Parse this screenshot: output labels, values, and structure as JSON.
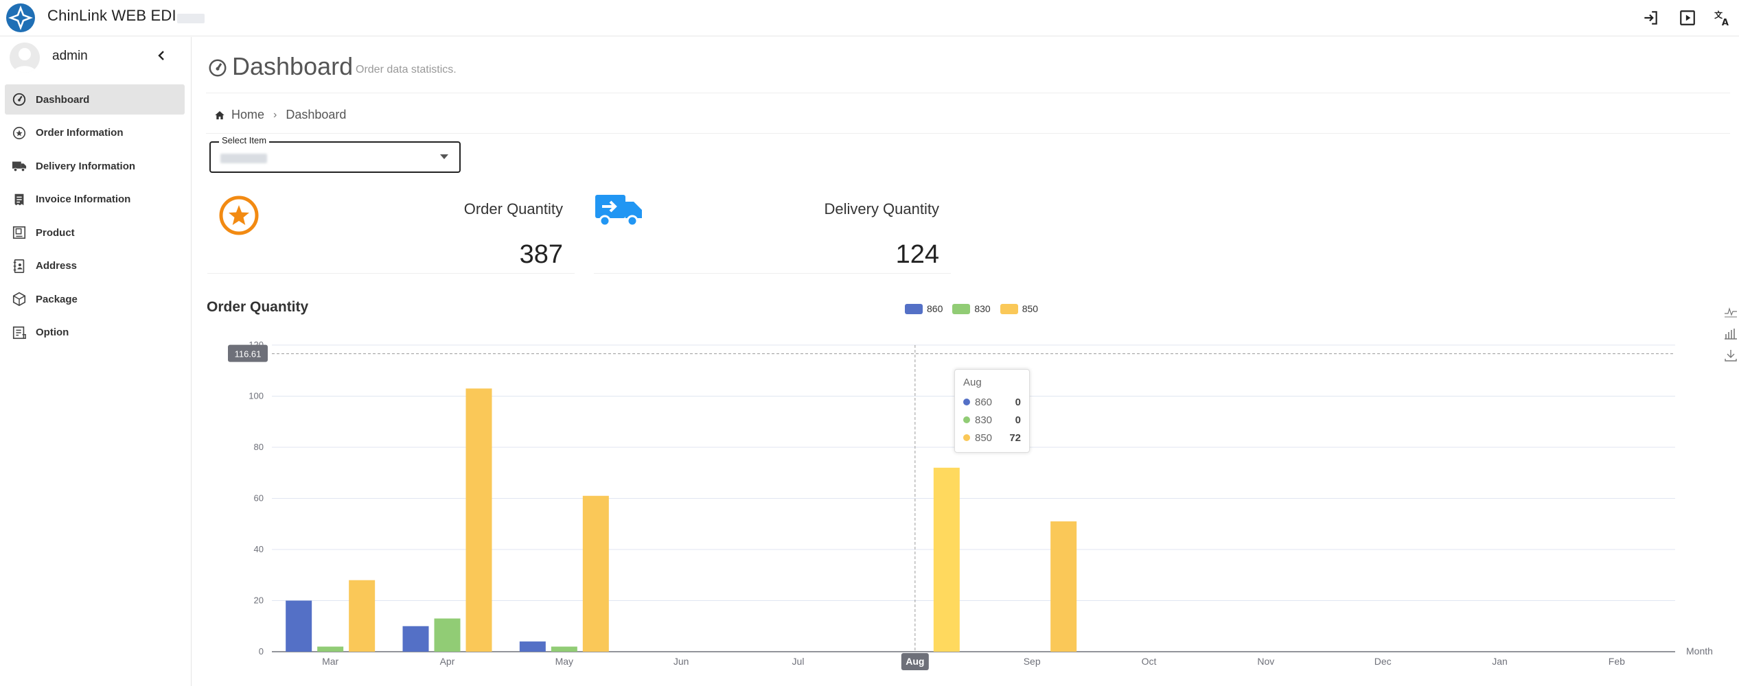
{
  "header": {
    "app_title": "ChinLink WEB EDI",
    "icons": [
      "logout-icon",
      "play-icon",
      "translate-icon"
    ]
  },
  "sidebar": {
    "username": "admin",
    "items": [
      {
        "label": "Dashboard",
        "icon": "gauge-icon",
        "active": true
      },
      {
        "label": "Order Information",
        "icon": "star-circle-icon"
      },
      {
        "label": "Delivery Information",
        "icon": "truck-icon"
      },
      {
        "label": "Invoice Information",
        "icon": "receipt-icon"
      },
      {
        "label": "Product",
        "icon": "product-icon"
      },
      {
        "label": "Address",
        "icon": "address-book-icon"
      },
      {
        "label": "Package",
        "icon": "package-icon"
      },
      {
        "label": "Option",
        "icon": "option-icon"
      }
    ]
  },
  "page": {
    "title": "Dashboard",
    "subtitle": "Order data statistics.",
    "breadcrumb": [
      "Home",
      "Dashboard"
    ]
  },
  "select": {
    "label": "Select Item"
  },
  "stats": {
    "order": {
      "label": "Order Quantity",
      "value": "387"
    },
    "delivery": {
      "label": "Delivery Quantity",
      "value": "124"
    }
  },
  "colors": {
    "s860": "#5470c6",
    "s830": "#91cc75",
    "s850": "#fac858",
    "orange": "#f28a12",
    "blue": "#2196f3"
  },
  "chart_data": {
    "type": "bar",
    "title": "Order Quantity",
    "categories": [
      "Mar",
      "Apr",
      "May",
      "Jun",
      "Jul",
      "Aug",
      "Sep",
      "Oct",
      "Nov",
      "Dec",
      "Jan",
      "Feb"
    ],
    "series": [
      {
        "name": "860",
        "values": [
          20,
          10,
          4,
          0,
          0,
          0,
          0,
          0,
          0,
          0,
          0,
          0
        ]
      },
      {
        "name": "830",
        "values": [
          2,
          13,
          2,
          0,
          0,
          0,
          0,
          0,
          0,
          0,
          0,
          0
        ]
      },
      {
        "name": "850",
        "values": [
          28,
          103,
          61,
          0,
          0,
          72,
          51,
          0,
          0,
          0,
          0,
          0
        ]
      }
    ],
    "xlabel": "Month",
    "ylabel": "",
    "ylim": [
      0,
      120
    ],
    "yticks": [
      0,
      20,
      40,
      60,
      80,
      100,
      120
    ],
    "grid": true,
    "legend_position": "top-center",
    "axis_pointer": {
      "y_value": "116.61",
      "x_category": "Aug"
    },
    "tooltip": {
      "title": "Aug",
      "rows": [
        {
          "name": "860",
          "value": "0"
        },
        {
          "name": "830",
          "value": "0"
        },
        {
          "name": "850",
          "value": "72"
        }
      ]
    }
  }
}
